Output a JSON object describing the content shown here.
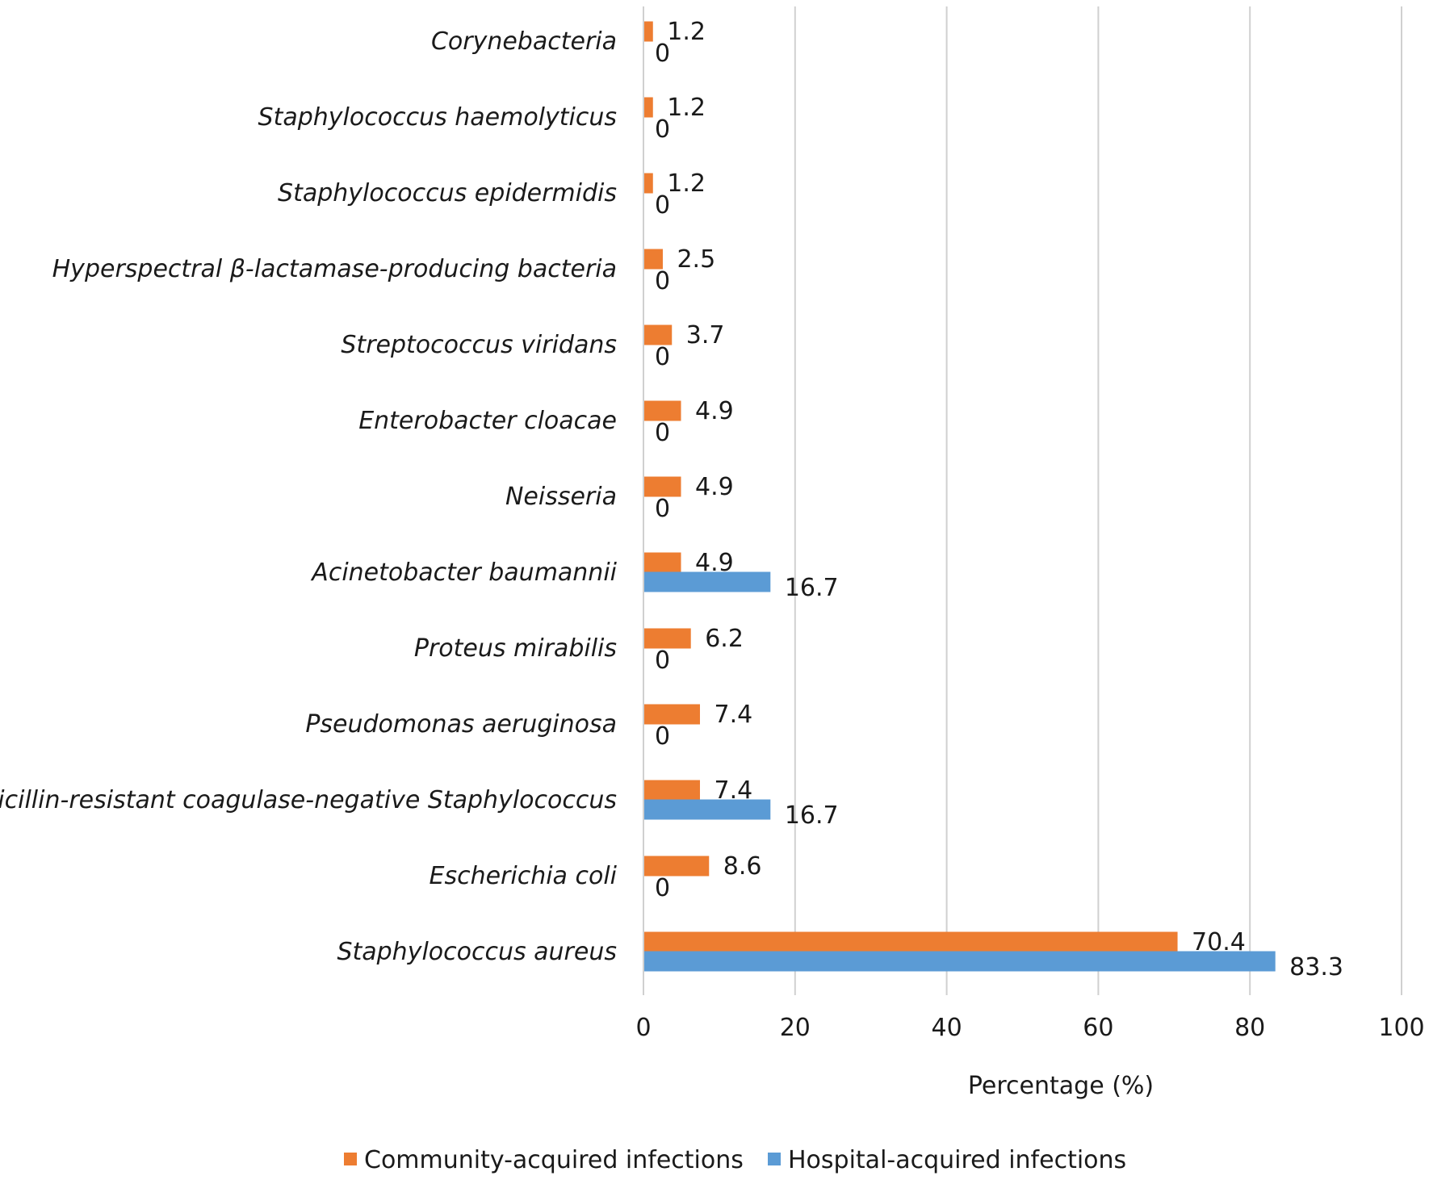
{
  "chart_data": {
    "type": "bar",
    "orientation": "horizontal",
    "title": "",
    "xlabel": "Percentage (%)",
    "ylabel": "",
    "xlim": [
      0,
      100
    ],
    "x_ticks": [
      0,
      20,
      40,
      60,
      80,
      100
    ],
    "grid": "vertical",
    "legend_position": "bottom",
    "categories": [
      "Corynebacteria",
      "Staphylococcus haemolyticus",
      "Staphylococcus epidermidis",
      "Hyperspectral β-lactamase-producing bacteria",
      "Streptococcus viridans",
      "Enterobacter cloacae",
      "Neisseria",
      "Acinetobacter baumannii",
      "Proteus mirabilis",
      "Pseudomonas aeruginosa",
      "Methicillin-resistant coagulase-negative Staphylococcus",
      "Escherichia coli",
      "Staphylococcus aureus"
    ],
    "series": [
      {
        "name": "Community-acquired infections",
        "color": "#ED7D31",
        "values": [
          1.2,
          1.2,
          1.2,
          2.5,
          3.7,
          4.9,
          4.9,
          4.9,
          6.2,
          7.4,
          7.4,
          8.6,
          70.4
        ]
      },
      {
        "name": "Hospital-acquired infections",
        "color": "#5B9BD5",
        "values": [
          0,
          0,
          0,
          0,
          0,
          0,
          0,
          16.7,
          0,
          0,
          16.7,
          0,
          83.3
        ]
      }
    ]
  }
}
